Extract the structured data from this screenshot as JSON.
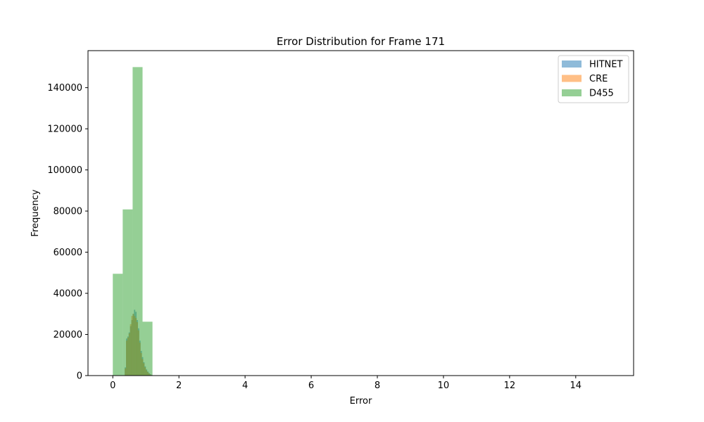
{
  "chart_data": {
    "type": "histogram",
    "title": "Error Distribution for Frame 171",
    "xlabel": "Error",
    "ylabel": "Frequency",
    "xlim": [
      -0.75,
      15.75
    ],
    "ylim": [
      0,
      158000
    ],
    "xticks": [
      0,
      2,
      4,
      6,
      8,
      10,
      12,
      14
    ],
    "yticks": [
      0,
      20000,
      40000,
      60000,
      80000,
      100000,
      120000,
      140000
    ],
    "legend_position": "top-right",
    "grid": false,
    "series": [
      {
        "name": "HITNET",
        "color": "#1f77b4",
        "opacity": 0.5,
        "bin_edges": [
          0.36,
          0.4,
          0.44,
          0.48,
          0.52,
          0.56,
          0.6,
          0.64,
          0.68,
          0.72,
          0.76,
          0.8,
          0.84,
          0.88,
          0.92,
          0.96,
          1.0,
          1.04,
          1.08,
          1.12,
          1.16,
          1.2
        ],
        "counts": [
          4000,
          18000,
          19000,
          21000,
          24000,
          27000,
          30000,
          32000,
          31000,
          27000,
          23000,
          17000,
          12000,
          9000,
          6500,
          4500,
          3000,
          2000,
          1200,
          700,
          300
        ]
      },
      {
        "name": "CRE",
        "color": "#ff7f0e",
        "opacity": 0.5,
        "bin_edges": [
          0.36,
          0.4,
          0.44,
          0.48,
          0.52,
          0.56,
          0.6,
          0.64,
          0.68,
          0.72,
          0.76,
          0.8,
          0.84,
          0.88,
          0.92,
          0.96,
          1.0,
          1.04,
          1.08,
          1.12,
          1.16,
          1.2
        ],
        "counts": [
          3500,
          17000,
          18500,
          20500,
          25000,
          29000,
          30000,
          29000,
          28000,
          26000,
          22000,
          16000,
          11000,
          8000,
          6000,
          4000,
          2600,
          1700,
          1000,
          500,
          200
        ]
      },
      {
        "name": "D455",
        "color": "#2ca02c",
        "opacity": 0.5,
        "bin_edges": [
          0.0,
          0.3,
          0.6,
          0.9,
          1.2
        ],
        "counts": [
          49500,
          80800,
          150000,
          26200
        ]
      }
    ]
  }
}
